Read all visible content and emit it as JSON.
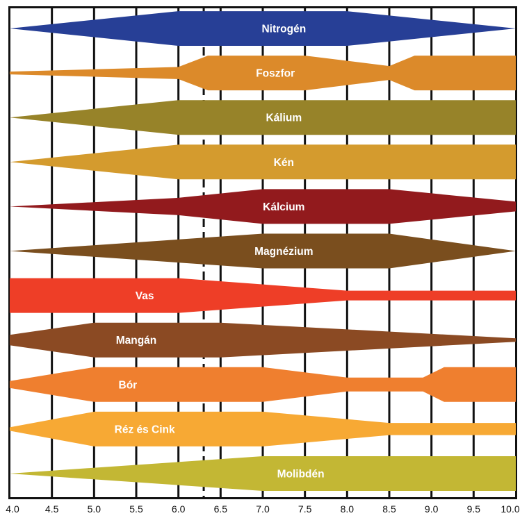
{
  "chart_data": {
    "type": "area",
    "title": "",
    "xlabel": "",
    "ylabel": "",
    "xlim": [
      4.0,
      10.0
    ],
    "x_ticks": [
      "4.0",
      "4.5",
      "5.0",
      "5.5",
      "6.0",
      "6.5",
      "7.0",
      "7.5",
      "8.0",
      "8.5",
      "9.0",
      "9.5",
      "10.0"
    ],
    "reference_line_x": 6.3,
    "grid": "vertical",
    "series": [
      {
        "name": "Nitrogén",
        "color": "#273f96",
        "label_x": 7.25,
        "profile": [
          [
            4.0,
            0
          ],
          [
            6.0,
            1
          ],
          [
            8.0,
            1
          ],
          [
            10.0,
            0
          ]
        ]
      },
      {
        "name": "Foszfor",
        "color": "#dc8a2a",
        "label_x": 7.15,
        "profile": [
          [
            4.0,
            0.08
          ],
          [
            6.0,
            0.35
          ],
          [
            6.35,
            1
          ],
          [
            7.5,
            1
          ],
          [
            8.5,
            0.4
          ],
          [
            8.8,
            1
          ],
          [
            10.0,
            1
          ]
        ]
      },
      {
        "name": "Kálium",
        "color": "#978329",
        "label_x": 7.25,
        "profile": [
          [
            4.0,
            0
          ],
          [
            6.0,
            1
          ],
          [
            10.0,
            1
          ]
        ]
      },
      {
        "name": "Kén",
        "color": "#d49b2e",
        "label_x": 7.25,
        "profile": [
          [
            4.0,
            0
          ],
          [
            6.0,
            1
          ],
          [
            10.0,
            1
          ]
        ]
      },
      {
        "name": "Kálcium",
        "color": "#921a1d",
        "label_x": 7.25,
        "profile": [
          [
            4.0,
            0
          ],
          [
            6.0,
            0.5
          ],
          [
            7.0,
            1
          ],
          [
            8.5,
            1
          ],
          [
            10.0,
            0.28
          ]
        ]
      },
      {
        "name": "Magnézium",
        "color": "#7a4e1e",
        "label_x": 7.25,
        "profile": [
          [
            4.0,
            0
          ],
          [
            7.0,
            1
          ],
          [
            8.5,
            1
          ],
          [
            10.0,
            0
          ]
        ]
      },
      {
        "name": "Vas",
        "color": "#ee3e27",
        "label_x": 5.6,
        "profile": [
          [
            4.0,
            1
          ],
          [
            6.0,
            1
          ],
          [
            8.0,
            0.28
          ],
          [
            10.0,
            0.28
          ]
        ]
      },
      {
        "name": "Mangán",
        "color": "#8b4a23",
        "label_x": 5.5,
        "profile": [
          [
            4.0,
            0.3
          ],
          [
            5.0,
            1
          ],
          [
            6.5,
            1
          ],
          [
            10.0,
            0.1
          ]
        ]
      },
      {
        "name": "Bór",
        "color": "#ef7f2f",
        "label_x": 5.4,
        "profile": [
          [
            4.0,
            0.2
          ],
          [
            5.0,
            1
          ],
          [
            7.0,
            1
          ],
          [
            8.0,
            0.4
          ],
          [
            8.9,
            0.4
          ],
          [
            9.15,
            1
          ],
          [
            10.0,
            1
          ]
        ]
      },
      {
        "name": "Réz és Cink",
        "color": "#f7a934",
        "label_x": 5.6,
        "profile": [
          [
            4.0,
            0.1
          ],
          [
            5.0,
            1
          ],
          [
            7.0,
            1
          ],
          [
            8.5,
            0.35
          ],
          [
            10.0,
            0.35
          ]
        ]
      },
      {
        "name": "Molibdén",
        "color": "#c3b734",
        "label_x": 7.45,
        "profile": [
          [
            4.0,
            0
          ],
          [
            7.0,
            1
          ],
          [
            10.0,
            1
          ]
        ]
      }
    ]
  }
}
